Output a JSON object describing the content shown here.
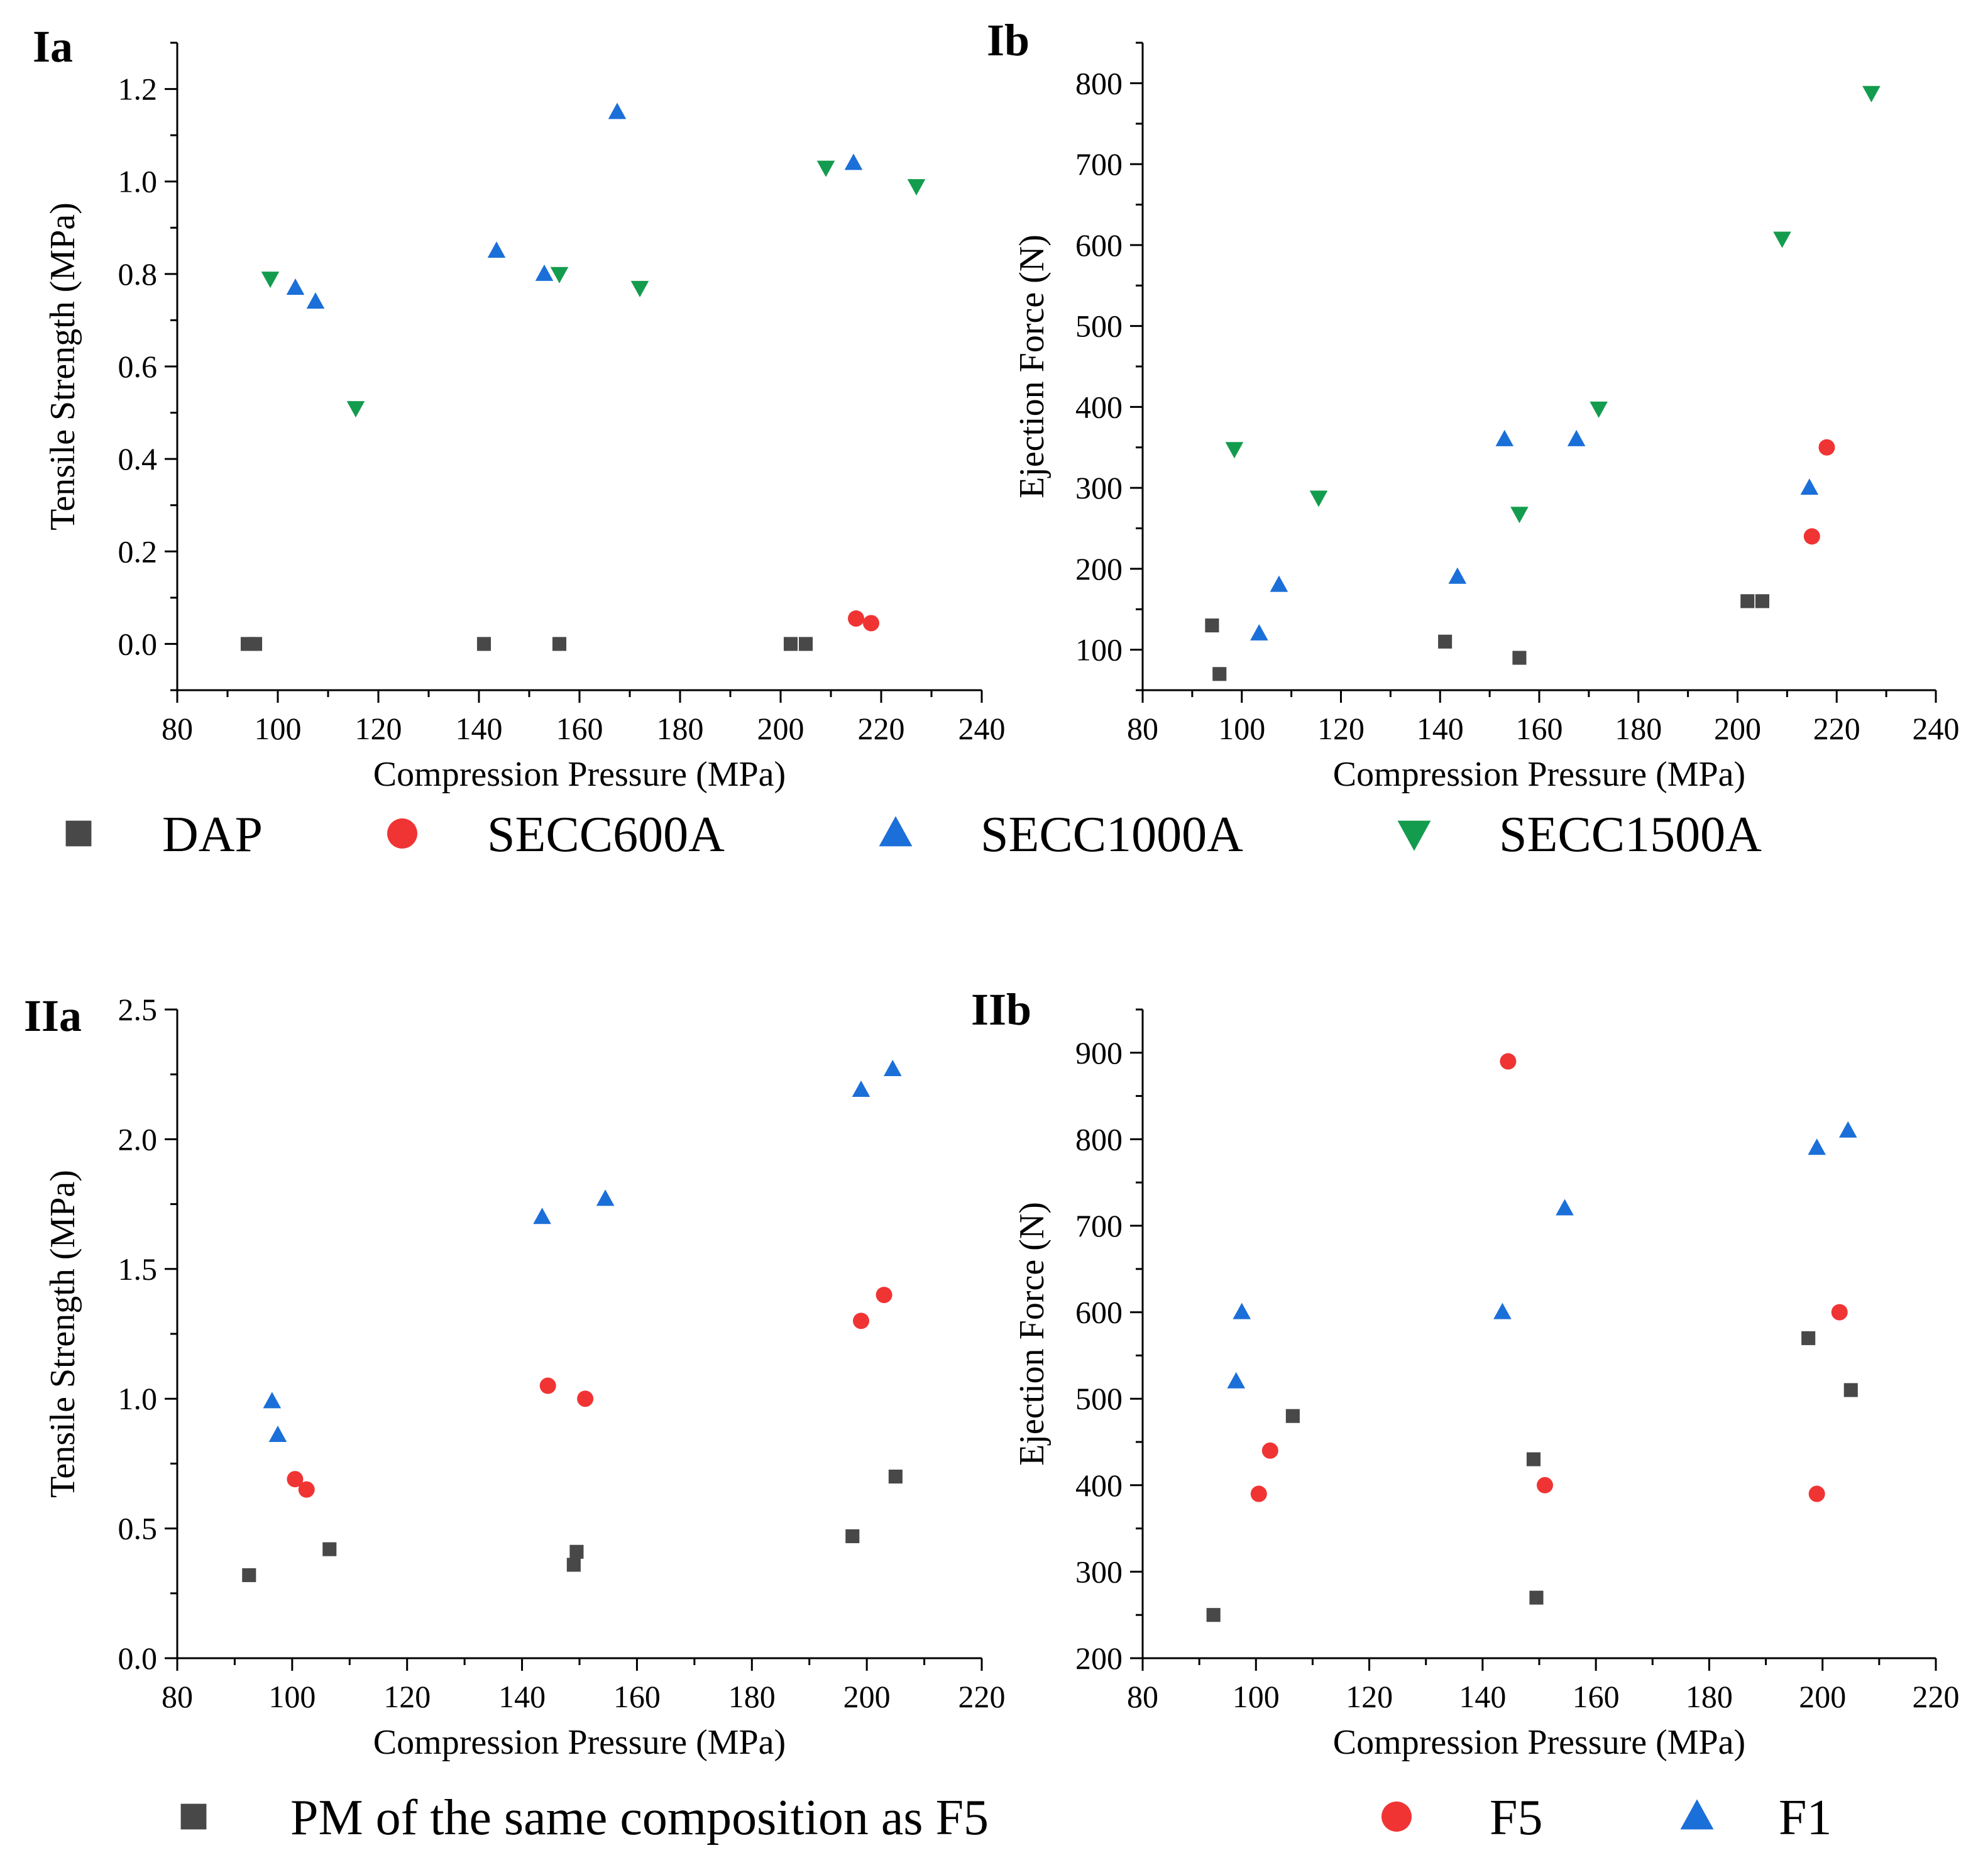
{
  "figure": {
    "colors": {
      "dap": "#484848",
      "secc600a": "#f03434",
      "secc1000a": "#1b6fd8",
      "secc1500a": "#149c4e",
      "pm": "#484848",
      "f5": "#f03434",
      "f1": "#1b6fd8"
    },
    "legend_top": [
      {
        "name": "DAP",
        "marker": "square",
        "color": "#484848"
      },
      {
        "name": "SECC600A",
        "marker": "circle",
        "color": "#f03434"
      },
      {
        "name": "SECC1000A",
        "marker": "triangle-up",
        "color": "#1b6fd8"
      },
      {
        "name": "SECC1500A",
        "marker": "triangle-down",
        "color": "#149c4e"
      }
    ],
    "legend_bottom": [
      {
        "name": "PM of the same composition as F5",
        "marker": "square",
        "color": "#484848"
      },
      {
        "name": "F5",
        "marker": "circle",
        "color": "#f03434"
      },
      {
        "name": "F1",
        "marker": "triangle-up",
        "color": "#1b6fd8"
      }
    ]
  },
  "chart_data": [
    {
      "panel": "Ia",
      "type": "scatter",
      "xlabel": "Compression Pressure (MPa)",
      "ylabel": "Tensile Strength (MPa)",
      "xlim": [
        80,
        240
      ],
      "ylim": [
        -0.1,
        1.3
      ],
      "xticks": [
        80,
        100,
        120,
        140,
        160,
        180,
        200,
        220,
        240
      ],
      "yticks": [
        0.0,
        0.2,
        0.4,
        0.6,
        0.8,
        1.0,
        1.2
      ],
      "ytick_labels": [
        "0.0",
        "0.2",
        "0.4",
        "0.6",
        "0.8",
        "1.0",
        "1.2"
      ],
      "series": [
        {
          "name": "DAP",
          "marker": "square",
          "color": "#484848",
          "points": [
            [
              94,
              0.0
            ],
            [
              95.5,
              0.0
            ],
            [
              141,
              0.0
            ],
            [
              156,
              0.0
            ],
            [
              202,
              0.0
            ],
            [
              205,
              0.0
            ]
          ]
        },
        {
          "name": "SECC600A",
          "marker": "circle",
          "color": "#f03434",
          "points": [
            [
              215,
              0.055
            ],
            [
              218,
              0.045
            ]
          ]
        },
        {
          "name": "SECC1000A",
          "marker": "triangle-up",
          "color": "#1b6fd8",
          "points": [
            [
              103.5,
              0.77
            ],
            [
              107.5,
              0.74
            ],
            [
              143.5,
              0.85
            ],
            [
              153,
              0.8
            ],
            [
              167.5,
              1.15
            ],
            [
              214.5,
              1.04
            ]
          ]
        },
        {
          "name": "SECC1500A",
          "marker": "triangle-down",
          "color": "#149c4e",
          "points": [
            [
              98.5,
              0.79
            ],
            [
              115.5,
              0.51
            ],
            [
              156,
              0.8
            ],
            [
              172,
              0.77
            ],
            [
              209,
              1.03
            ],
            [
              227,
              0.99
            ]
          ]
        }
      ]
    },
    {
      "panel": "Ib",
      "type": "scatter",
      "xlabel": "Compression Pressure (MPa)",
      "ylabel": "Ejection Force (N)",
      "xlim": [
        80,
        240
      ],
      "ylim": [
        50,
        850
      ],
      "xticks": [
        80,
        100,
        120,
        140,
        160,
        180,
        200,
        220,
        240
      ],
      "yticks": [
        100,
        200,
        300,
        400,
        500,
        600,
        700,
        800
      ],
      "ytick_labels": [
        "100",
        "200",
        "300",
        "400",
        "500",
        "600",
        "700",
        "800"
      ],
      "series": [
        {
          "name": "DAP",
          "marker": "square",
          "color": "#484848",
          "points": [
            [
              94,
              130
            ],
            [
              95.5,
              70
            ],
            [
              141,
              110
            ],
            [
              156,
              90
            ],
            [
              202,
              160
            ],
            [
              205,
              160
            ]
          ]
        },
        {
          "name": "SECC600A",
          "marker": "circle",
          "color": "#f03434",
          "points": [
            [
              215,
              240
            ],
            [
              218,
              350
            ]
          ]
        },
        {
          "name": "SECC1000A",
          "marker": "triangle-up",
          "color": "#1b6fd8",
          "points": [
            [
              103.5,
              120
            ],
            [
              107.5,
              180
            ],
            [
              143.5,
              190
            ],
            [
              153,
              360
            ],
            [
              167.5,
              360
            ],
            [
              214.5,
              300
            ]
          ]
        },
        {
          "name": "SECC1500A",
          "marker": "triangle-down",
          "color": "#149c4e",
          "points": [
            [
              98.5,
              348
            ],
            [
              115.5,
              288
            ],
            [
              156,
              268
            ],
            [
              172,
              398
            ],
            [
              209,
              608
            ],
            [
              227,
              788
            ]
          ]
        }
      ]
    },
    {
      "panel": "IIa",
      "type": "scatter",
      "xlabel": "Compression Pressure (MPa)",
      "ylabel": "Tensile Strength (MPa)",
      "xlim": [
        80,
        220
      ],
      "ylim": [
        0.0,
        2.5
      ],
      "xticks": [
        80,
        100,
        120,
        140,
        160,
        180,
        200,
        220
      ],
      "yticks": [
        0.0,
        0.5,
        1.0,
        1.5,
        2.0,
        2.5
      ],
      "ytick_labels": [
        "0.0",
        "0.5",
        "1.0",
        "1.5",
        "2.0",
        "2.5"
      ],
      "series": [
        {
          "name": "PM of the same composition as F5",
          "marker": "square",
          "color": "#484848",
          "points": [
            [
              92.5,
              0.32
            ],
            [
              106.5,
              0.42
            ],
            [
              149,
              0.36
            ],
            [
              149.5,
              0.41
            ],
            [
              197.5,
              0.47
            ],
            [
              205,
              0.7
            ]
          ]
        },
        {
          "name": "F5",
          "marker": "circle",
          "color": "#f03434",
          "points": [
            [
              100.5,
              0.69
            ],
            [
              102.5,
              0.65
            ],
            [
              144.5,
              1.05
            ],
            [
              151,
              1.0
            ],
            [
              199,
              1.3
            ],
            [
              203,
              1.4
            ]
          ]
        },
        {
          "name": "F1",
          "marker": "triangle-up",
          "color": "#1b6fd8",
          "points": [
            [
              96.5,
              0.99
            ],
            [
              97.5,
              0.86
            ],
            [
              143.5,
              1.7
            ],
            [
              154.5,
              1.77
            ],
            [
              199,
              2.19
            ],
            [
              204.5,
              2.27
            ]
          ]
        }
      ]
    },
    {
      "panel": "IIb",
      "type": "scatter",
      "xlabel": "Compression Pressure (MPa)",
      "ylabel": "Ejection Force (N)",
      "xlim": [
        80,
        220
      ],
      "ylim": [
        200,
        950
      ],
      "xticks": [
        80,
        100,
        120,
        140,
        160,
        180,
        200,
        220
      ],
      "yticks": [
        200,
        300,
        400,
        500,
        600,
        700,
        800,
        900
      ],
      "ytick_labels": [
        "200",
        "300",
        "400",
        "500",
        "600",
        "700",
        "800",
        "900"
      ],
      "series": [
        {
          "name": "PM of the same composition as F5",
          "marker": "square",
          "color": "#484848",
          "points": [
            [
              92.5,
              250
            ],
            [
              106.5,
              480
            ],
            [
              149,
              430
            ],
            [
              149.5,
              270
            ],
            [
              197.5,
              570
            ],
            [
              205,
              510
            ]
          ]
        },
        {
          "name": "F5",
          "marker": "circle",
          "color": "#f03434",
          "points": [
            [
              100.5,
              390
            ],
            [
              102.5,
              440
            ],
            [
              144.5,
              890
            ],
            [
              151,
              400
            ],
            [
              199,
              390
            ],
            [
              203,
              600
            ]
          ]
        },
        {
          "name": "F1",
          "marker": "triangle-up",
          "color": "#1b6fd8",
          "points": [
            [
              96.5,
              520
            ],
            [
              97.5,
              600
            ],
            [
              143.5,
              600
            ],
            [
              154.5,
              720
            ],
            [
              199,
              790
            ],
            [
              204.5,
              810
            ]
          ]
        }
      ]
    }
  ]
}
